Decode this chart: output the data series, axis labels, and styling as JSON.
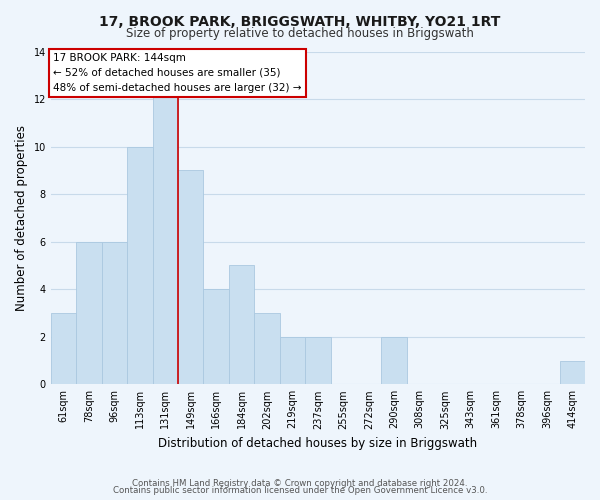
{
  "title": "17, BROOK PARK, BRIGGSWATH, WHITBY, YO21 1RT",
  "subtitle": "Size of property relative to detached houses in Briggswath",
  "xlabel": "Distribution of detached houses by size in Briggswath",
  "ylabel": "Number of detached properties",
  "bin_labels": [
    "61sqm",
    "78sqm",
    "96sqm",
    "113sqm",
    "131sqm",
    "149sqm",
    "166sqm",
    "184sqm",
    "202sqm",
    "219sqm",
    "237sqm",
    "255sqm",
    "272sqm",
    "290sqm",
    "308sqm",
    "325sqm",
    "343sqm",
    "361sqm",
    "378sqm",
    "396sqm",
    "414sqm"
  ],
  "bar_heights": [
    3,
    6,
    6,
    10,
    13,
    9,
    4,
    5,
    3,
    2,
    2,
    0,
    0,
    2,
    0,
    0,
    0,
    0,
    0,
    0,
    1
  ],
  "bar_color": "#c9dff0",
  "bar_edge_color": "#aac8e0",
  "vline_x_index": 4.5,
  "vline_color": "#cc0000",
  "annotation_title": "17 BROOK PARK: 144sqm",
  "annotation_line1": "← 52% of detached houses are smaller (35)",
  "annotation_line2": "48% of semi-detached houses are larger (32) →",
  "annotation_box_color": "#ffffff",
  "annotation_box_edge": "#cc0000",
  "ylim": [
    0,
    14
  ],
  "yticks": [
    0,
    2,
    4,
    6,
    8,
    10,
    12,
    14
  ],
  "footer1": "Contains HM Land Registry data © Crown copyright and database right 2024.",
  "footer2": "Contains public sector information licensed under the Open Government Licence v3.0.",
  "grid_color": "#c8daea",
  "background_color": "#eef5fc",
  "title_fontsize": 10,
  "subtitle_fontsize": 8.5,
  "axis_label_fontsize": 8.5,
  "tick_fontsize": 7,
  "footer_fontsize": 6.2
}
